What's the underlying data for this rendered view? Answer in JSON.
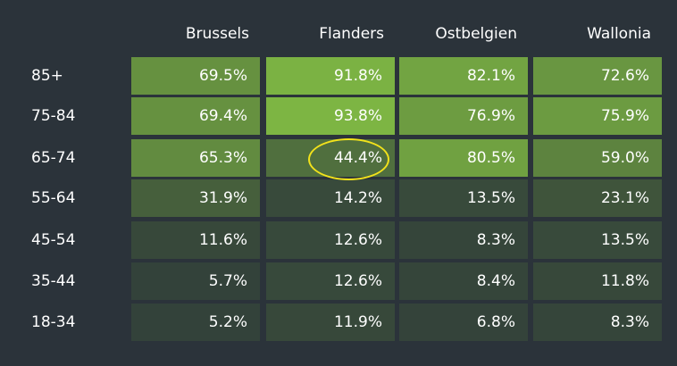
{
  "chart_data": {
    "type": "heatmap",
    "columns": [
      "Brussels",
      "Flanders",
      "Ostbelgien",
      "Wallonia"
    ],
    "rows": [
      "85+",
      "75-84",
      "65-74",
      "55-64",
      "45-54",
      "35-44",
      "18-34"
    ],
    "values": [
      [
        69.5,
        91.8,
        82.1,
        72.6
      ],
      [
        69.4,
        93.8,
        76.9,
        75.9
      ],
      [
        65.3,
        44.4,
        80.5,
        59.0
      ],
      [
        31.9,
        14.2,
        13.5,
        23.1
      ],
      [
        11.6,
        12.6,
        8.3,
        13.5
      ],
      [
        5.7,
        12.6,
        8.4,
        11.8
      ],
      [
        5.2,
        11.9,
        6.8,
        8.3
      ]
    ],
    "labels": [
      [
        "69.5%",
        "91.8%",
        "82.1%",
        "72.6%"
      ],
      [
        "69.4%",
        "93.8%",
        "76.9%",
        "75.9%"
      ],
      [
        "65.3%",
        "44.4%",
        "80.5%",
        "59.0%"
      ],
      [
        "31.9%",
        "14.2%",
        "13.5%",
        "23.1%"
      ],
      [
        "11.6%",
        "12.6%",
        "8.3%",
        "13.5%"
      ],
      [
        "5.7%",
        "12.6%",
        "8.4%",
        "11.8%"
      ],
      [
        "5.2%",
        "11.9%",
        "6.8%",
        "8.3%"
      ]
    ],
    "highlighted_cell": {
      "row": "65-74",
      "column": "Flanders"
    },
    "colors": {
      "background": "#2b333a",
      "low": "#33423a",
      "high": "#7db543",
      "highlight_ring": "#f2e21b",
      "text": "#ffffff"
    }
  }
}
